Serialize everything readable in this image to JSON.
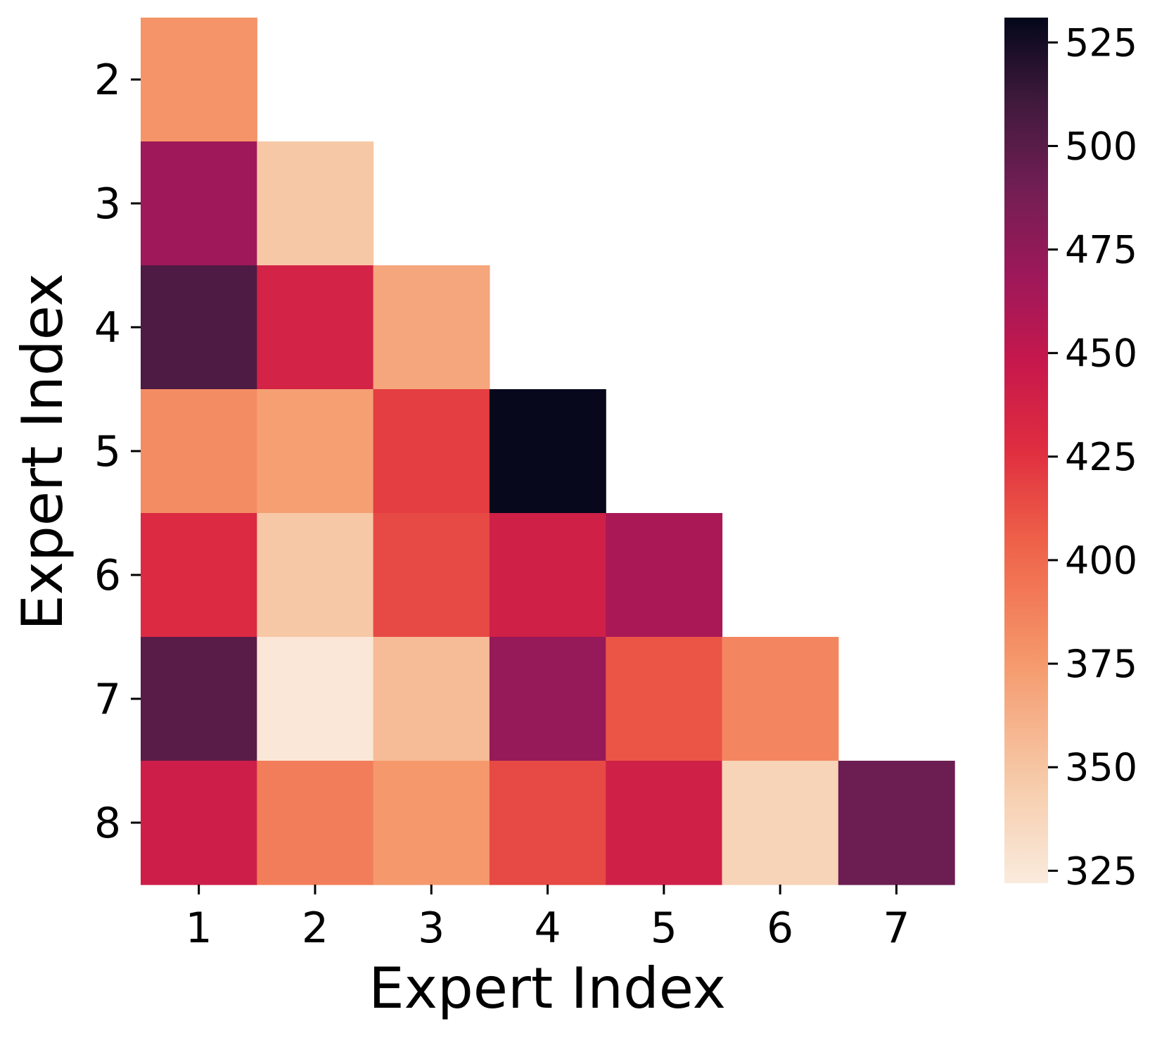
{
  "chart_data": {
    "type": "heatmap",
    "title": "",
    "xlabel": "Expert Index",
    "ylabel": "Expert Index",
    "x_categories": [
      "1",
      "2",
      "3",
      "4",
      "5",
      "6",
      "7"
    ],
    "y_categories": [
      "2",
      "3",
      "4",
      "5",
      "6",
      "7",
      "8"
    ],
    "mask": "upper-triangle",
    "values": [
      [
        378,
        null,
        null,
        null,
        null,
        null,
        null
      ],
      [
        468,
        348,
        null,
        null,
        null,
        null,
        null
      ],
      [
        505,
        437,
        368,
        null,
        null,
        null,
        null
      ],
      [
        382,
        372,
        420,
        530,
        null,
        null,
        null
      ],
      [
        430,
        348,
        415,
        440,
        462,
        null,
        null
      ],
      [
        500,
        325,
        355,
        472,
        410,
        385,
        null
      ],
      [
        442,
        390,
        375,
        415,
        440,
        340,
        492
      ]
    ],
    "colorbar": {
      "colormap": "rocket_r",
      "range": [
        322,
        531
      ],
      "ticks": [
        "325",
        "350",
        "375",
        "400",
        "425",
        "450",
        "475",
        "500",
        "525"
      ]
    }
  }
}
